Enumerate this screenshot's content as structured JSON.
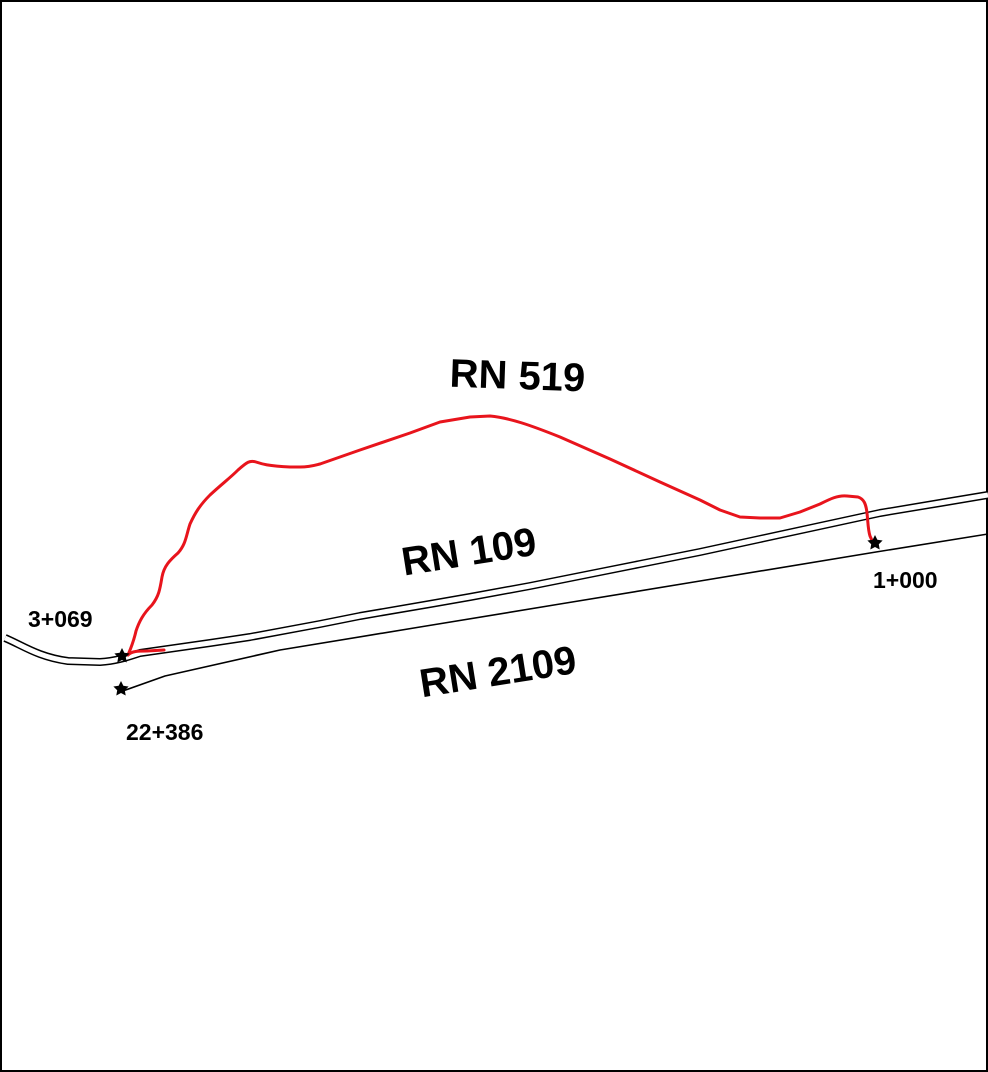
{
  "colors": {
    "background": "#ffffff",
    "frame": "#000000",
    "road_casing": "#000000",
    "road_fill": "#ffffff",
    "highlighted_route": "#e8141c",
    "marker": "#000000"
  },
  "roads": {
    "rn519": {
      "label": "RN 519",
      "highlighted": true
    },
    "rn109": {
      "label": "RN 109",
      "style": "double-line"
    },
    "rn2109": {
      "label": "RN 2109",
      "style": "single-line"
    }
  },
  "markers": {
    "pk_3069": {
      "label": "3+069",
      "icon": "star-icon"
    },
    "pk_22386": {
      "label": "22+386",
      "icon": "star-icon"
    },
    "pk_1000": {
      "label": "1+000",
      "icon": "star-icon"
    }
  }
}
